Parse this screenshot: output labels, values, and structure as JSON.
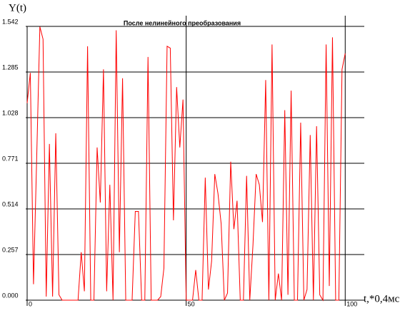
{
  "chart_data": {
    "type": "line",
    "title": "После нелинейного преобразования",
    "y_label": "Y(t)",
    "x_label": "t,*0,4мс",
    "xlim": [
      0,
      106
    ],
    "xticks": [
      0,
      50,
      100
    ],
    "ylim": [
      0,
      1.542
    ],
    "yticks": [
      {
        "value": 0,
        "label": "0.000"
      },
      0.257,
      0.514,
      0.771,
      1.028,
      1.285,
      1.542
    ],
    "grid": true,
    "series": [
      {
        "color": "#ff0000",
        "x": [
          0,
          1,
          2,
          3,
          4,
          5,
          6,
          7,
          8,
          9,
          10,
          11,
          12,
          13,
          14,
          15,
          16,
          17,
          18,
          19,
          20,
          21,
          22,
          23,
          24,
          25,
          26,
          27,
          28,
          29,
          30,
          31,
          32,
          33,
          34,
          35,
          36,
          37,
          38,
          39,
          40,
          41,
          42,
          43,
          44,
          45,
          46,
          47,
          48,
          49,
          50,
          51,
          52,
          53,
          54,
          55,
          56,
          57,
          58,
          59,
          60,
          61,
          62,
          63,
          64,
          65,
          66,
          67,
          68,
          69,
          70,
          71,
          72,
          73,
          74,
          75,
          76,
          77,
          78,
          79,
          80,
          81,
          82,
          83,
          84,
          85,
          86,
          87,
          88,
          89,
          90,
          91,
          92,
          93,
          94,
          95,
          96,
          97,
          98,
          99,
          100
        ],
        "values": [
          1.11,
          1.28,
          0.09,
          0.8,
          1.54,
          1.47,
          0.02,
          0.88,
          0.02,
          0.94,
          0.03,
          0,
          0,
          0,
          0,
          0,
          0,
          0.27,
          0.05,
          1.43,
          0,
          0,
          0.86,
          0.55,
          1.3,
          0.05,
          0.65,
          0,
          1.52,
          0.27,
          1.25,
          0,
          0,
          0,
          0.5,
          0.5,
          0,
          0,
          1.37,
          0,
          0,
          0,
          0.02,
          0.18,
          1.43,
          1.42,
          0.45,
          1.2,
          0.86,
          1.13,
          0,
          0,
          0,
          0.17,
          0,
          0,
          0.69,
          0.06,
          0.22,
          0.71,
          0.6,
          0.43,
          0,
          0.04,
          0.78,
          0.4,
          0.56,
          0,
          0,
          0.7,
          0,
          0.31,
          0.71,
          0.65,
          0.44,
          1.24,
          0,
          1.44,
          0,
          0.15,
          0,
          1.07,
          0.03,
          1.18,
          0,
          0,
          1.0,
          0,
          0.06,
          0.93,
          0,
          0.98,
          0.03,
          0,
          1.44,
          0.08,
          1.48,
          0,
          0,
          1.3,
          1.39
        ]
      }
    ]
  }
}
